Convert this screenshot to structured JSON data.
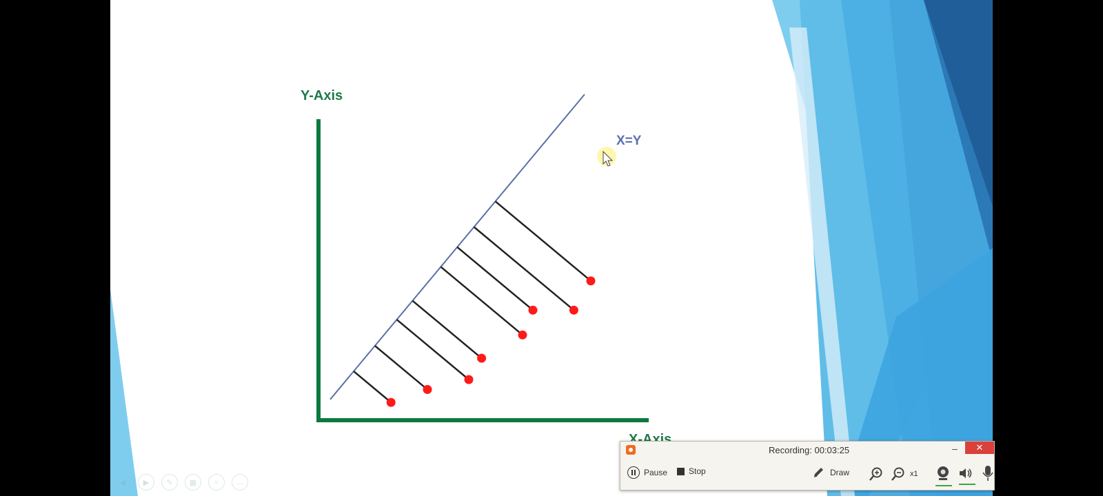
{
  "slide": {
    "y_axis_label": "Y-Axis",
    "x_axis_label": "X-Axis",
    "line_label": "X=Y"
  },
  "chart_data": {
    "type": "scatter",
    "xlabel": "X-Axis",
    "ylabel": "Y-Axis",
    "points": [
      {
        "x": 2.07,
        "y": 0.54
      },
      {
        "x": 2.95,
        "y": 0.8
      },
      {
        "x": 3.95,
        "y": 1.0
      },
      {
        "x": 4.26,
        "y": 1.43
      },
      {
        "x": 5.25,
        "y": 1.9
      },
      {
        "x": 5.5,
        "y": 2.4
      },
      {
        "x": 6.49,
        "y": 2.4
      },
      {
        "x": 6.9,
        "y": 2.99
      }
    ],
    "reference_line": {
      "label": "X=Y",
      "from": [
        0,
        0
      ],
      "to": [
        7,
        7
      ]
    },
    "grid": false,
    "colors": {
      "axis": "#0b7a3f",
      "line": "#5b6fa8",
      "points": "#ff1a1a",
      "residuals": "#222222"
    }
  },
  "recorder": {
    "status": "Recording:  00:03:25",
    "minimize": "–",
    "close": "✕",
    "pause_label": "Pause",
    "stop_label": "Stop",
    "draw_label": "Draw",
    "zoom_level": "x1",
    "icons": [
      "pause-icon",
      "stop-icon",
      "pencil-icon",
      "zoom-in-icon",
      "zoom-out-icon",
      "webcam-icon",
      "speaker-icon",
      "microphone-icon"
    ]
  },
  "slide_nav": {
    "icons": [
      "back-icon",
      "forward-icon",
      "pen-icon",
      "slides-icon",
      "zoom-icon",
      "more-icon"
    ]
  }
}
